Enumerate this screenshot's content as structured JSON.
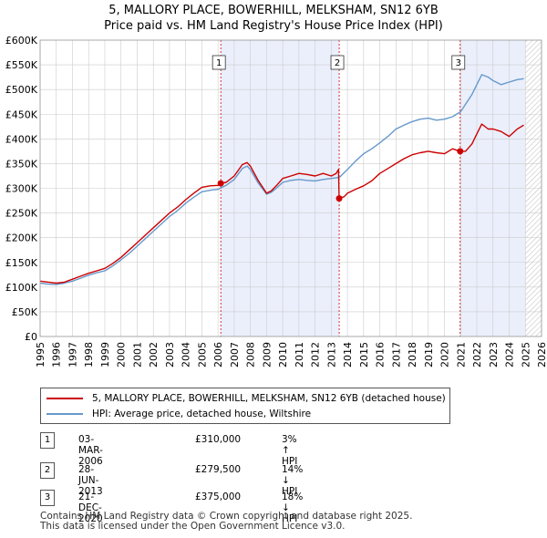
{
  "title_line1": "5, MALLORY PLACE, BOWERHILL, MELKSHAM, SN12 6YB",
  "title_line2": "Price paid vs. HM Land Registry's House Price Index (HPI)",
  "colors": {
    "property_line": "#cc0000",
    "hpi_line": "#6699cc",
    "shade": "#eaeffb",
    "grid": "#cccccc",
    "marker_line": "#cc0000"
  },
  "chart_data": {
    "type": "line",
    "title": "5, MALLORY PLACE, BOWERHILL, MELKSHAM, SN12 6YB — Price paid vs. HM Land Registry's House Price Index (HPI)",
    "xlim": [
      1995,
      2026
    ],
    "ylim": [
      0,
      600000
    ],
    "xticks": [
      1995,
      1996,
      1997,
      1998,
      1999,
      2000,
      2001,
      2002,
      2003,
      2004,
      2005,
      2006,
      2007,
      2008,
      2009,
      2010,
      2011,
      2012,
      2013,
      2014,
      2015,
      2016,
      2017,
      2018,
      2019,
      2020,
      2021,
      2022,
      2023,
      2024,
      2025,
      2026
    ],
    "yticks": [
      {
        "value": 0,
        "label": "£0"
      },
      {
        "value": 50000,
        "label": "£50K"
      },
      {
        "value": 100000,
        "label": "£100K"
      },
      {
        "value": 150000,
        "label": "£150K"
      },
      {
        "value": 200000,
        "label": "£200K"
      },
      {
        "value": 250000,
        "label": "£250K"
      },
      {
        "value": 300000,
        "label": "£300K"
      },
      {
        "value": 350000,
        "label": "£350K"
      },
      {
        "value": 400000,
        "label": "£400K"
      },
      {
        "value": 450000,
        "label": "£450K"
      },
      {
        "value": 500000,
        "label": "£500K"
      },
      {
        "value": 550000,
        "label": "£550K"
      },
      {
        "value": 600000,
        "label": "£600K"
      }
    ],
    "shaded_ranges": [
      [
        2006.17,
        2013.49
      ],
      [
        2020.97,
        2025.0
      ]
    ],
    "future_hatch_from": 2025.0,
    "series": [
      {
        "name": "5, MALLORY PLACE, BOWERHILL, MELKSHAM, SN12 6YB (detached house)",
        "x": [
          1995.0,
          1995.5,
          1996.0,
          1996.5,
          1997.0,
          1997.5,
          1998.0,
          1998.5,
          1999.0,
          1999.5,
          2000.0,
          2000.5,
          2001.0,
          2001.5,
          2002.0,
          2002.5,
          2003.0,
          2003.5,
          2004.0,
          2004.5,
          2005.0,
          2005.5,
          2006.0,
          2006.17,
          2006.5,
          2007.0,
          2007.5,
          2007.8,
          2008.0,
          2008.5,
          2009.0,
          2009.3,
          2009.6,
          2010.0,
          2010.5,
          2011.0,
          2011.5,
          2012.0,
          2012.5,
          2013.0,
          2013.3,
          2013.45,
          2013.49,
          2013.8,
          2014.0,
          2014.5,
          2015.0,
          2015.5,
          2016.0,
          2016.5,
          2017.0,
          2017.5,
          2018.0,
          2018.5,
          2019.0,
          2019.5,
          2020.0,
          2020.5,
          2020.97,
          2021.3,
          2021.7,
          2022.0,
          2022.3,
          2022.7,
          2023.0,
          2023.5,
          2024.0,
          2024.5,
          2024.9
        ],
        "values": [
          112000,
          110000,
          108000,
          110000,
          116000,
          122000,
          128000,
          133000,
          138000,
          148000,
          160000,
          175000,
          190000,
          205000,
          220000,
          235000,
          250000,
          262000,
          277000,
          290000,
          302000,
          305000,
          306000,
          310000,
          312000,
          325000,
          348000,
          352000,
          345000,
          315000,
          290000,
          295000,
          305000,
          320000,
          325000,
          330000,
          328000,
          325000,
          330000,
          325000,
          330000,
          338000,
          279500,
          283000,
          290000,
          298000,
          305000,
          315000,
          330000,
          340000,
          350000,
          360000,
          368000,
          372000,
          375000,
          372000,
          370000,
          380000,
          375000,
          375000,
          390000,
          410000,
          430000,
          420000,
          420000,
          415000,
          405000,
          420000,
          428000
        ]
      },
      {
        "name": "HPI: Average price, detached house, Wiltshire",
        "x": [
          1995.0,
          1995.5,
          1996.0,
          1996.5,
          1997.0,
          1997.5,
          1998.0,
          1998.5,
          1999.0,
          1999.5,
          2000.0,
          2000.5,
          2001.0,
          2001.5,
          2002.0,
          2002.5,
          2003.0,
          2003.5,
          2004.0,
          2004.5,
          2005.0,
          2005.5,
          2006.0,
          2006.5,
          2007.0,
          2007.5,
          2007.8,
          2008.0,
          2008.5,
          2009.0,
          2009.3,
          2009.6,
          2010.0,
          2010.5,
          2011.0,
          2011.5,
          2012.0,
          2012.5,
          2013.0,
          2013.5,
          2014.0,
          2014.5,
          2015.0,
          2015.5,
          2016.0,
          2016.5,
          2017.0,
          2017.5,
          2018.0,
          2018.5,
          2019.0,
          2019.5,
          2020.0,
          2020.5,
          2021.0,
          2021.3,
          2021.7,
          2022.0,
          2022.3,
          2022.7,
          2023.0,
          2023.5,
          2024.0,
          2024.5,
          2024.9
        ],
        "values": [
          108000,
          106000,
          105000,
          108000,
          112000,
          118000,
          124000,
          129000,
          133000,
          143000,
          155000,
          168000,
          183000,
          198000,
          213000,
          228000,
          243000,
          255000,
          270000,
          282000,
          293000,
          296000,
          298000,
          306000,
          318000,
          340000,
          345000,
          338000,
          310000,
          288000,
          292000,
          300000,
          312000,
          316000,
          318000,
          316000,
          315000,
          318000,
          320000,
          322000,
          338000,
          355000,
          370000,
          380000,
          392000,
          405000,
          420000,
          428000,
          435000,
          440000,
          442000,
          438000,
          440000,
          445000,
          455000,
          470000,
          490000,
          510000,
          530000,
          525000,
          518000,
          510000,
          515000,
          520000,
          522000
        ]
      }
    ],
    "transactions": [
      {
        "id": "1",
        "date": "03-MAR-2006",
        "price": "£310,000",
        "hpi": "3% ↑ HPI",
        "x": 2006.17,
        "value": 310000
      },
      {
        "id": "2",
        "date": "28-JUN-2013",
        "price": "£279,500",
        "hpi": "14% ↓ HPI",
        "x": 2013.49,
        "value": 279500
      },
      {
        "id": "3",
        "date": "21-DEC-2020",
        "price": "£375,000",
        "hpi": "18% ↓ HPI",
        "x": 2020.97,
        "value": 375000
      }
    ]
  },
  "legend": {
    "property_label": "5, MALLORY PLACE, BOWERHILL, MELKSHAM, SN12 6YB (detached house)",
    "hpi_label": "HPI: Average price, detached house, Wiltshire"
  },
  "footer": {
    "line1": "Contains HM Land Registry data © Crown copyright and database right 2025.",
    "line2": "This data is licensed under the Open Government Licence v3.0."
  }
}
